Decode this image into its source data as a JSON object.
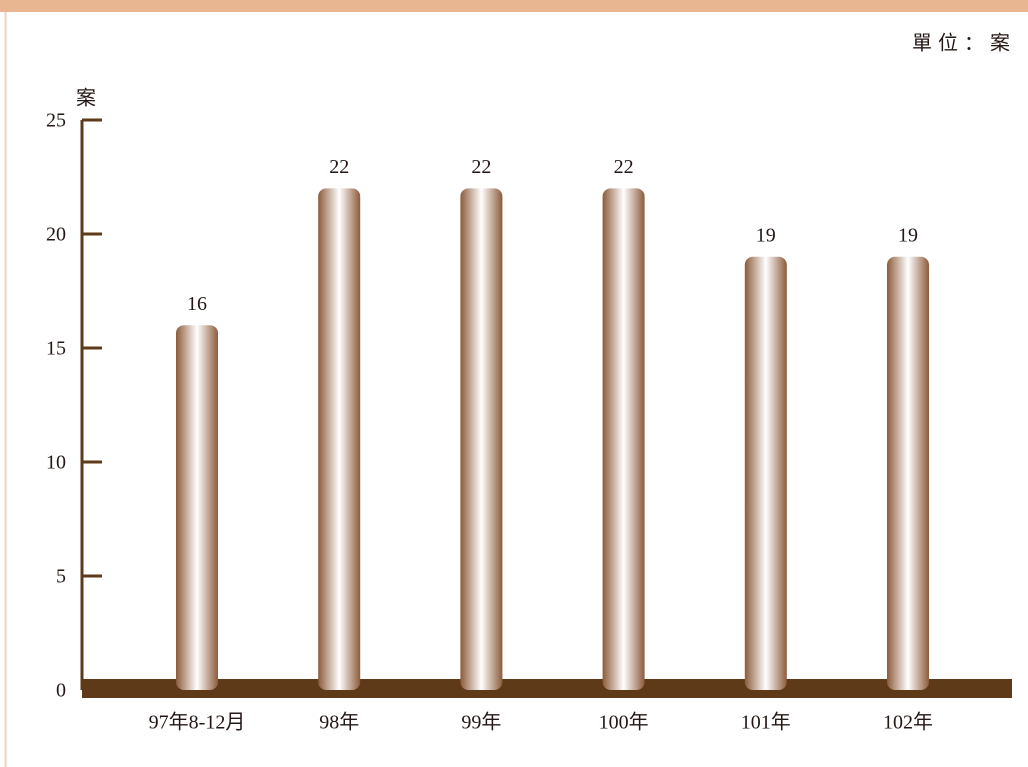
{
  "chart_data": {
    "type": "bar",
    "unit": "單位：案",
    "ylabel": "案",
    "categories": [
      "97年8-12月",
      "98年",
      "99年",
      "100年",
      "101年",
      "102年"
    ],
    "values": [
      16,
      22,
      22,
      22,
      19,
      19
    ],
    "color": "#8c5b3a",
    "axis_color": "#5e3a18",
    "ylim": [
      0,
      25
    ],
    "yticks": [
      0,
      5,
      10,
      15,
      20,
      25
    ]
  }
}
